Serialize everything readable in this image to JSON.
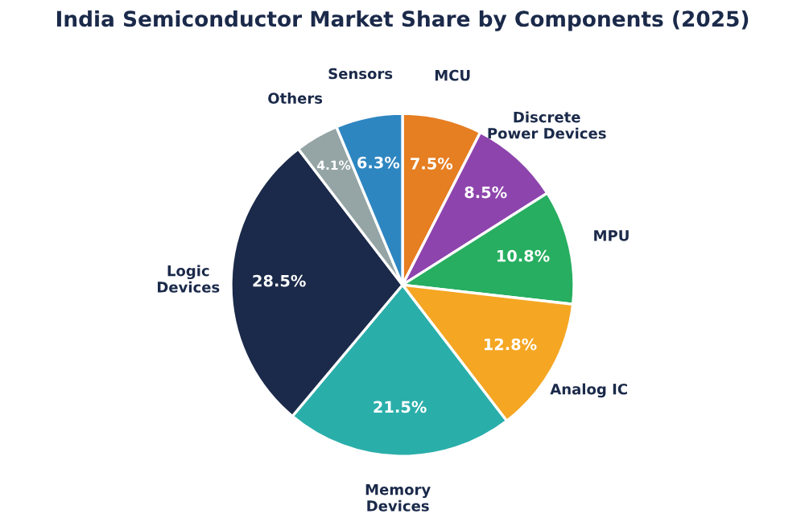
{
  "chart_data": {
    "type": "pie",
    "title": "India Semiconductor Market Share by Components (2025)",
    "categories": [
      "MCU",
      "Discrete\nPower Devices",
      "MPU",
      "Analog IC",
      "Memory\nDevices",
      "Logic\nDevices",
      "Others",
      "Sensors"
    ],
    "values": [
      7.5,
      8.5,
      10.8,
      12.8,
      21.5,
      28.5,
      4.1,
      6.3
    ],
    "value_labels": [
      "7.5%",
      "8.5%",
      "10.8%",
      "12.8%",
      "21.5%",
      "28.5%",
      "4.1%",
      "6.3%"
    ],
    "colors": [
      "#e67e22",
      "#8e44ad",
      "#27ae60",
      "#f5a623",
      "#2aaeaa",
      "#1b2a4a",
      "#95a5a6",
      "#2e86c1"
    ],
    "legend": false
  }
}
